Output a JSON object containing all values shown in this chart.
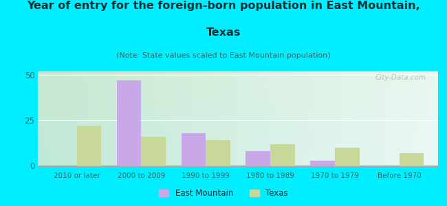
{
  "categories": [
    "2010 or later",
    "2000 to 2009",
    "1990 to 1999",
    "1980 to 1989",
    "1970 to 1979",
    "Before 1970"
  ],
  "east_mountain": [
    0,
    47,
    18,
    8,
    3,
    0
  ],
  "texas": [
    22,
    16,
    14,
    12,
    10,
    7
  ],
  "east_mountain_color": "#c8a8e8",
  "texas_color": "#c8d898",
  "title_line1": "Year of entry for the foreign-born population in East Mountain,",
  "title_line2": "Texas",
  "subtitle": "(Note: State values scaled to East Mountain population)",
  "legend_east_mountain": "East Mountain",
  "legend_texas": "Texas",
  "ylim": [
    0,
    52
  ],
  "yticks": [
    0,
    25,
    50
  ],
  "background_outer": "#00eeff",
  "title_fontsize": 11.5,
  "subtitle_fontsize": 8,
  "bar_width": 0.38,
  "watermark": "City-Data.com",
  "title_color": "#003333",
  "subtitle_color": "#336666",
  "tick_color": "#336666",
  "grid_color": "#ffffff"
}
